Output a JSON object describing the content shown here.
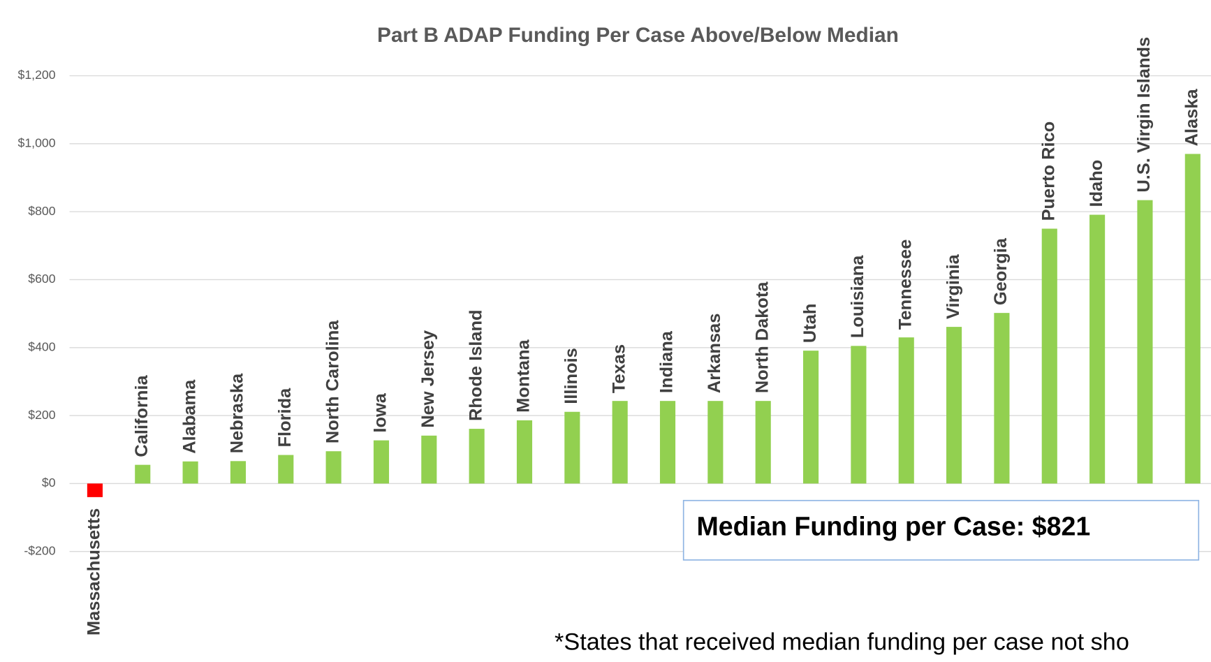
{
  "chart_data": {
    "type": "bar",
    "title": "Part B ADAP Funding Per Case Above/Below Median",
    "categories": [
      "Massachusetts",
      "California",
      "Alabama",
      "Nebraska",
      "Florida",
      "North Carolina",
      "Iowa",
      "New Jersey",
      "Rhode Island",
      "Montana",
      "Illinois",
      "Texas",
      "Indiana",
      "Arkansas",
      "North Dakota",
      "Utah",
      "Louisiana",
      "Tennessee",
      "Virginia",
      "Georgia",
      "Puerto Rico",
      "Idaho",
      "U.S. Virgin Islands",
      "Alaska"
    ],
    "values": [
      -40,
      55,
      65,
      66,
      84,
      95,
      127,
      141,
      161,
      186,
      211,
      243,
      243,
      243,
      243,
      391,
      405,
      430,
      461,
      502,
      750,
      791,
      834,
      970
    ],
    "color": "#92d050",
    "negative_color": "#ff0000",
    "ylim": [
      -200,
      1200
    ],
    "yticks": [
      {
        "value": -200,
        "label": "-$200"
      },
      {
        "value": 0,
        "label": "$0"
      },
      {
        "value": 200,
        "label": "$200"
      },
      {
        "value": 400,
        "label": "$400"
      },
      {
        "value": 600,
        "label": "$600"
      },
      {
        "value": 800,
        "label": "$800"
      },
      {
        "value": 1000,
        "label": "$1,000"
      },
      {
        "value": 1200,
        "label": "$1,200"
      }
    ],
    "grid": true,
    "annotation": "Median Funding per Case: $821",
    "footnote": "*States that received median funding per case not sho"
  }
}
